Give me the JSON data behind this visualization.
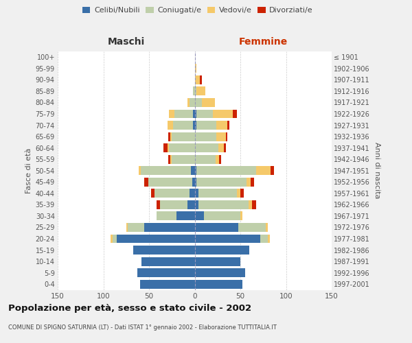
{
  "age_groups": [
    "0-4",
    "5-9",
    "10-14",
    "15-19",
    "20-24",
    "25-29",
    "30-34",
    "35-39",
    "40-44",
    "45-49",
    "50-54",
    "55-59",
    "60-64",
    "65-69",
    "70-74",
    "75-79",
    "80-84",
    "85-89",
    "90-94",
    "95-99",
    "100+"
  ],
  "birth_years": [
    "1997-2001",
    "1992-1996",
    "1987-1991",
    "1982-1986",
    "1977-1981",
    "1972-1976",
    "1967-1971",
    "1962-1966",
    "1957-1961",
    "1952-1956",
    "1947-1951",
    "1942-1946",
    "1937-1941",
    "1932-1936",
    "1927-1931",
    "1922-1926",
    "1917-1921",
    "1912-1916",
    "1907-1911",
    "1902-1906",
    "≤ 1901"
  ],
  "male": {
    "celibi": [
      60,
      63,
      58,
      67,
      85,
      55,
      20,
      8,
      6,
      3,
      4,
      0,
      0,
      0,
      2,
      2,
      0,
      0,
      0,
      0,
      0
    ],
    "coniugati": [
      0,
      0,
      0,
      0,
      5,
      18,
      22,
      30,
      38,
      48,
      55,
      25,
      28,
      25,
      22,
      20,
      6,
      2,
      0,
      0,
      0
    ],
    "vedovi": [
      0,
      0,
      0,
      0,
      2,
      2,
      0,
      0,
      0,
      0,
      2,
      2,
      2,
      2,
      6,
      6,
      2,
      0,
      0,
      0,
      0
    ],
    "divorziati": [
      0,
      0,
      0,
      0,
      0,
      0,
      0,
      4,
      4,
      4,
      0,
      2,
      4,
      2,
      0,
      0,
      0,
      0,
      0,
      0,
      0
    ]
  },
  "female": {
    "nubili": [
      52,
      55,
      50,
      60,
      72,
      48,
      10,
      4,
      4,
      2,
      2,
      0,
      0,
      0,
      2,
      2,
      0,
      0,
      0,
      0,
      0
    ],
    "coniugate": [
      0,
      0,
      0,
      0,
      8,
      30,
      40,
      55,
      42,
      55,
      65,
      23,
      26,
      24,
      22,
      18,
      8,
      2,
      0,
      0,
      0
    ],
    "vedove": [
      0,
      0,
      0,
      0,
      2,
      2,
      2,
      4,
      4,
      4,
      16,
      4,
      6,
      10,
      12,
      22,
      14,
      10,
      6,
      2,
      0
    ],
    "divorziate": [
      0,
      0,
      0,
      0,
      0,
      0,
      0,
      4,
      4,
      4,
      4,
      2,
      2,
      2,
      2,
      4,
      0,
      0,
      2,
      0,
      0
    ]
  },
  "colors": {
    "celibi": "#3A6FA8",
    "coniugati": "#BFCFAA",
    "vedovi": "#F5C96A",
    "divorziati": "#CC2200"
  },
  "xlim": 150,
  "title": "Popolazione per età, sesso e stato civile - 2002",
  "subtitle": "COMUNE DI SPIGNO SATURNIA (LT) - Dati ISTAT 1° gennaio 2002 - Elaborazione TUTTITALIA.IT",
  "ylabel_left": "Fasce di età",
  "ylabel_right": "Anni di nascita",
  "xlabel_left": "Maschi",
  "xlabel_right": "Femmine",
  "bg_color": "#F0F0F0",
  "plot_bg_color": "#FFFFFF",
  "legend_labels": [
    "Celibi/Nubili",
    "Coniugati/e",
    "Vedovi/e",
    "Divorziati/e"
  ]
}
